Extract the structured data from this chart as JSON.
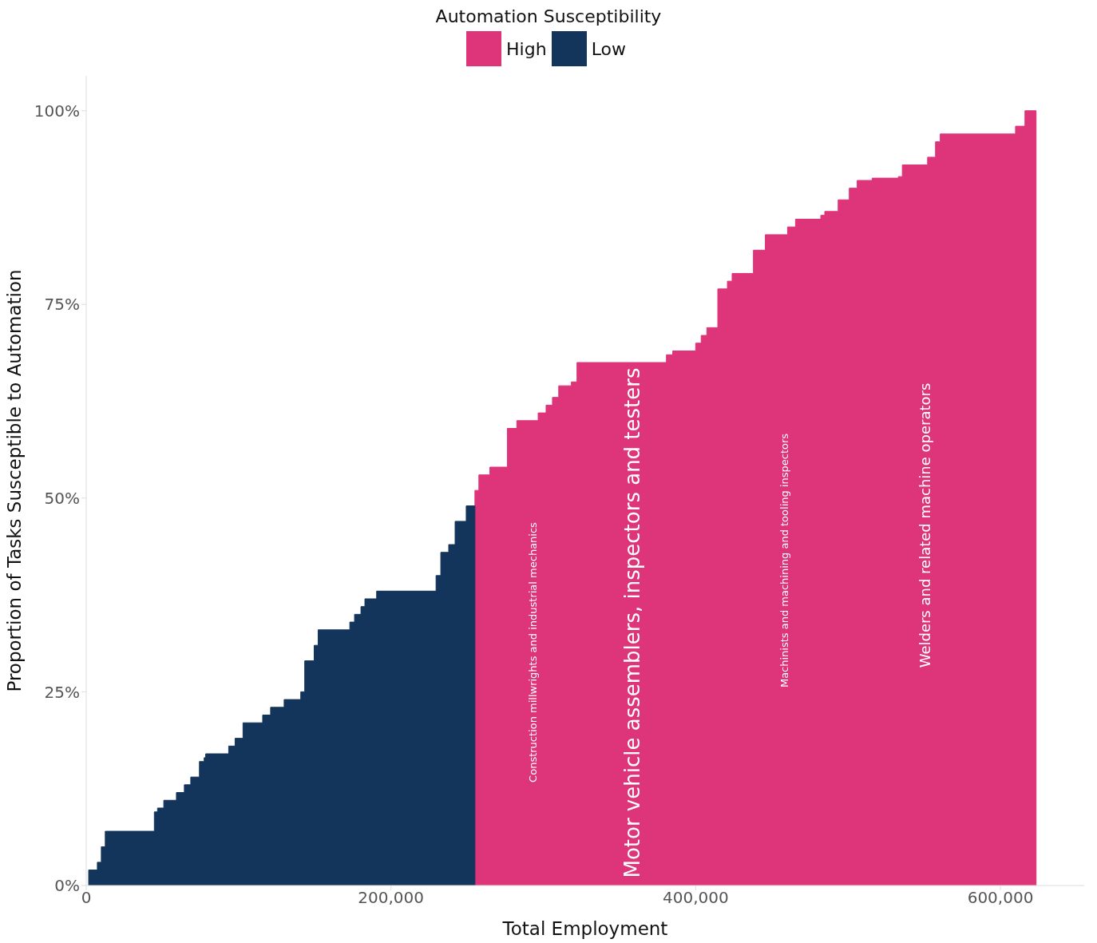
{
  "chart_data": {
    "legend_title": "Automation Susceptibility",
    "xlabel": "Total Employment",
    "ylabel": "Proportion of Tasks Susceptible to Automation",
    "legend": "top",
    "grid": false,
    "xlim": [
      0,
      655000
    ],
    "type": "area",
    "xticks": [
      {
        "value": 0,
        "label": "0"
      },
      {
        "value": 200000,
        "label": "200,000"
      },
      {
        "value": 400000,
        "label": "400,000"
      },
      {
        "value": 600000,
        "label": "600,000"
      }
    ],
    "ylim": [
      0,
      104.5
    ],
    "yticks": [
      {
        "value": 0,
        "label": "0%"
      },
      {
        "value": 25,
        "label": "25%"
      },
      {
        "value": 50,
        "label": "50%"
      },
      {
        "value": 75,
        "label": "75%"
      },
      {
        "value": 100,
        "label": "100%"
      }
    ],
    "series": [
      {
        "name": "High",
        "color": "#dd347a",
        "x": [
          255100,
          255100,
          257700,
          257700,
          264900,
          264900,
          276400,
          276400,
          282600,
          282600,
          296600,
          296600,
          301800,
          301800,
          306000,
          306000,
          310100,
          310100,
          318400,
          318400,
          322100,
          322100,
          380800,
          380800,
          384900,
          384900,
          400000,
          400000,
          403600,
          403600,
          407300,
          407300,
          414500,
          414500,
          420800,
          420800,
          423900,
          423900,
          437900,
          437900,
          445700,
          445700,
          460300,
          460300,
          465500,
          465500,
          482100,
          482100,
          484700,
          484700,
          493500,
          493500,
          500800,
          500800,
          506000,
          506000,
          515800,
          515800,
          533000,
          533000,
          535600,
          535600,
          552200,
          552200,
          557400,
          557400,
          560500,
          560500,
          609900,
          609900,
          616100,
          616100,
          623400,
          623400
        ],
        "values": [
          0,
          51,
          51,
          53,
          53,
          54,
          54,
          59,
          59,
          60,
          60,
          61,
          61,
          62,
          62,
          63,
          63,
          64.5,
          64.5,
          65,
          65,
          67.5,
          67.5,
          68.5,
          68.5,
          69,
          69,
          70,
          70,
          71,
          71,
          72,
          72,
          77,
          77,
          78,
          78,
          79,
          79,
          82,
          82,
          84,
          84,
          85,
          85,
          86,
          86,
          86.5,
          86.5,
          87,
          87,
          88.5,
          88.5,
          90,
          90,
          91,
          91,
          91.3,
          91.3,
          91.5,
          91.5,
          93,
          93,
          94,
          94,
          96,
          96,
          97,
          97,
          98,
          98,
          100,
          100,
          0
        ]
      },
      {
        "name": "Low",
        "color": "#14355b",
        "x": [
          1600,
          1600,
          7300,
          7300,
          9900,
          9900,
          12500,
          12500,
          44700,
          44700,
          46800,
          46800,
          50900,
          50900,
          59200,
          59200,
          64400,
          64400,
          68600,
          68600,
          74300,
          74300,
          77400,
          77400,
          78400,
          78400,
          93500,
          93500,
          97700,
          97700,
          102900,
          102900,
          115800,
          115800,
          121000,
          121000,
          129900,
          129900,
          140800,
          140800,
          143400,
          143400,
          149600,
          149600,
          152200,
          152200,
          173000,
          173000,
          176100,
          176100,
          180300,
          180300,
          182900,
          182900,
          190600,
          190600,
          229600,
          229600,
          232700,
          232700,
          237900,
          237900,
          242100,
          242100,
          249400,
          249400,
          255100,
          255100
        ],
        "values": [
          0,
          2,
          2,
          3,
          3,
          5,
          5,
          7,
          7,
          9.5,
          9.5,
          10,
          10,
          11,
          11,
          12,
          12,
          13,
          13,
          14,
          14,
          16,
          16,
          16.5,
          16.5,
          17,
          17,
          18,
          18,
          19,
          19,
          21,
          21,
          22,
          22,
          23,
          23,
          24,
          24,
          25,
          25,
          29,
          29,
          31,
          31,
          33,
          33,
          34,
          34,
          35,
          35,
          36,
          36,
          37,
          37,
          38,
          38,
          40,
          40,
          43,
          43,
          44,
          44,
          47,
          47,
          49,
          49,
          0
        ]
      }
    ],
    "annotations": [
      "Construction millwrights and industrial mechanics",
      "Motor vehicle assemblers, inspectors and testers",
      "Machinists and machining and tooling inspectors",
      "Welders and related machine operators"
    ]
  }
}
